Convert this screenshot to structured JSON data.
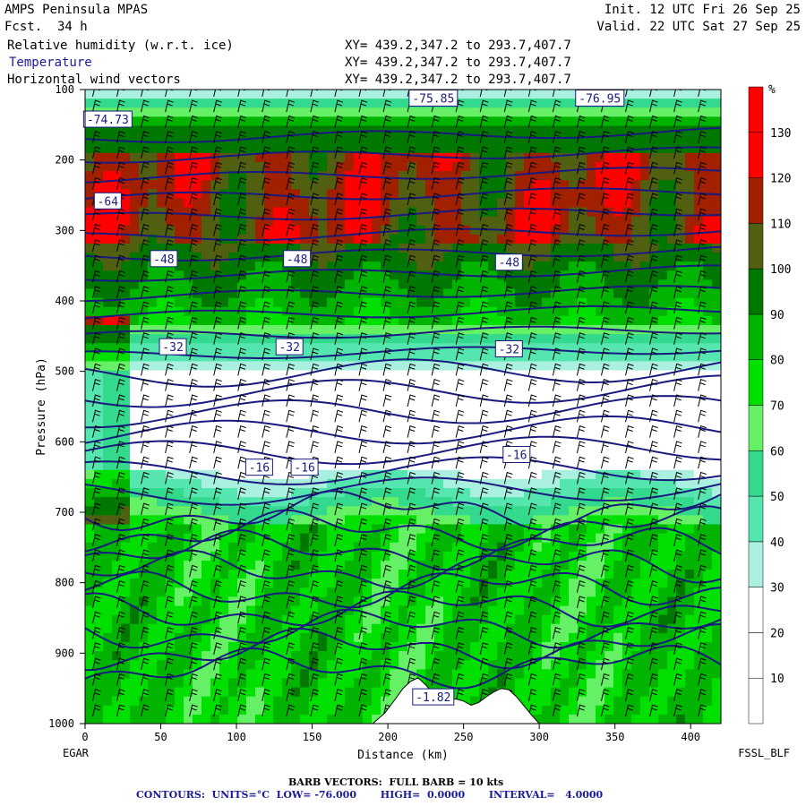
{
  "header": {
    "model": "AMPS Peninsula MPAS",
    "forecast": "Fcst.  34 h",
    "init": "Init. 12 UTC Fri 26 Sep 25",
    "valid": "Valid. 22 UTC Sat 27 Sep 25",
    "fields": [
      {
        "label": "Relative humidity (w.r.t. ice)",
        "xy": "XY= 439.2,347.2 to 293.7,407.7",
        "color": "#000000"
      },
      {
        "label": "Temperature",
        "xy": "XY= 439.2,347.2 to 293.7,407.7",
        "color": "#1a1a9a"
      },
      {
        "label": "Horizontal wind vectors",
        "xy": "XY= 439.2,347.2 to 293.7,407.7",
        "color": "#000000"
      }
    ]
  },
  "footer": {
    "barb": "BARB VECTORS:  FULL BARB = 10 kts",
    "contours": "CONTOURS:  UNITS=°C  LOW= -76.000       HIGH=  0.0000       INTERVAL=   4.0000"
  },
  "endpoints": {
    "left": "EGAR",
    "right": "FSSL_BLF"
  },
  "chart_data": {
    "type": "heatmap",
    "xlabel": "Distance (km)",
    "ylabel": "Pressure (hPa)",
    "xlim": [
      0,
      420
    ],
    "ylim": [
      1000,
      100
    ],
    "xticks": [
      0,
      50,
      100,
      150,
      200,
      250,
      300,
      350,
      400
    ],
    "yticks": [
      100,
      200,
      300,
      400,
      500,
      600,
      700,
      800,
      900,
      1000
    ],
    "colorbar": {
      "unit": "%",
      "levels": [
        10,
        20,
        30,
        40,
        50,
        60,
        70,
        80,
        90,
        100,
        110,
        120,
        130
      ],
      "colors": [
        "#ffffff",
        "#ffffff",
        "#ffffff",
        "#aaf0e0",
        "#55e6b0",
        "#33d98c",
        "#66f066",
        "#00e000",
        "#00b400",
        "#007800",
        "#506010",
        "#a02000",
        "#ff0000",
        "#ff0000"
      ]
    },
    "temperature_contour_labels": [
      {
        "text": "-76.95",
        "x": 340,
        "p": 112
      },
      {
        "text": "-75.85",
        "x": 230,
        "p": 112
      },
      {
        "text": "-74.73",
        "x": 15,
        "p": 142
      },
      {
        "text": "-64",
        "x": 15,
        "p": 258
      },
      {
        "text": "-48",
        "x": 52,
        "p": 340
      },
      {
        "text": "-48",
        "x": 140,
        "p": 340
      },
      {
        "text": "-48",
        "x": 280,
        "p": 345
      },
      {
        "text": "-32",
        "x": 58,
        "p": 465
      },
      {
        "text": "-32",
        "x": 135,
        "p": 465
      },
      {
        "text": "-32",
        "x": 280,
        "p": 468
      },
      {
        "text": "-16",
        "x": 115,
        "p": 636
      },
      {
        "text": "-16",
        "x": 145,
        "p": 636
      },
      {
        "text": "-16",
        "x": 285,
        "p": 618
      },
      {
        "text": "-1.82",
        "x": 230,
        "p": 962
      }
    ],
    "terrain": {
      "x": [
        190,
        198,
        205,
        210,
        215,
        220,
        225,
        230,
        235,
        240,
        245,
        250,
        255,
        260,
        265,
        270,
        275,
        280,
        285,
        290,
        295,
        300
      ],
      "p": [
        1000,
        985,
        965,
        950,
        940,
        935,
        945,
        958,
        965,
        966,
        965,
        968,
        974,
        970,
        962,
        955,
        950,
        952,
        962,
        975,
        988,
        1000
      ]
    }
  }
}
